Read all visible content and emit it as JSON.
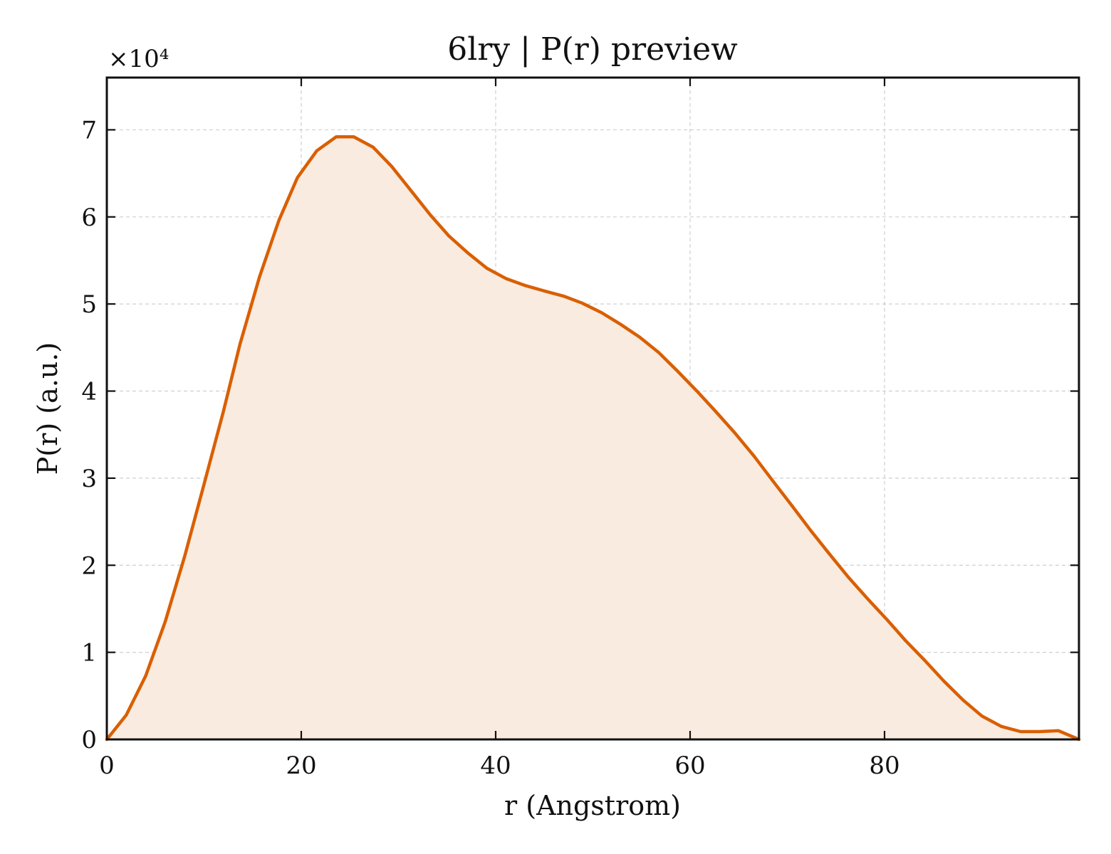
{
  "chart_data": {
    "type": "area",
    "title": "6lry | P(r) preview",
    "xlabel": "r (Angstrom)",
    "ylabel": "P(r) (a.u.)",
    "y_scale_label": "×10⁴",
    "y_scale_factor": 10000,
    "xlim": [
      0,
      100
    ],
    "ylim": [
      0,
      76000
    ],
    "x_ticks": [
      0,
      20,
      40,
      60,
      80
    ],
    "x_tick_labels": [
      "0",
      "20",
      "40",
      "60",
      "80"
    ],
    "y_ticks": [
      0,
      10000,
      20000,
      30000,
      40000,
      50000,
      60000,
      70000
    ],
    "y_tick_labels": [
      "0",
      "1",
      "2",
      "3",
      "4",
      "5",
      "6",
      "7"
    ],
    "grid": true,
    "colors": {
      "line": "#d95f02",
      "fill": "#f9ebe0"
    },
    "series": [
      {
        "x": [
          0,
          2,
          4,
          6,
          8,
          10,
          12,
          13.7,
          15.7,
          17.7,
          19.6,
          21.6,
          23.6,
          25.4,
          27.4,
          29.3,
          31.3,
          33.3,
          35.2,
          37.2,
          39.1,
          41.1,
          43.1,
          45,
          47,
          48.9,
          50.9,
          52.8,
          54.8,
          56.8,
          58.7,
          60.7,
          62.6,
          64.6,
          66.6,
          68.5,
          70.5,
          72.4,
          74.4,
          76.3,
          78.3,
          80.3,
          82.2,
          84.2,
          86.1,
          88.1,
          90,
          92,
          94,
          95.9,
          97.9,
          100
        ],
        "y": [
          0,
          2800,
          7300,
          13500,
          21000,
          29300,
          37700,
          45400,
          53100,
          59600,
          64500,
          67600,
          69200,
          69200,
          68000,
          65800,
          63000,
          60200,
          57800,
          55800,
          54100,
          52900,
          52100,
          51500,
          50900,
          50100,
          49000,
          47700,
          46200,
          44400,
          42300,
          40000,
          37700,
          35200,
          32500,
          29700,
          26800,
          24000,
          21200,
          18600,
          16100,
          13700,
          11300,
          9000,
          6700,
          4500,
          2700,
          1500,
          900,
          900,
          1000,
          0
        ]
      }
    ]
  }
}
